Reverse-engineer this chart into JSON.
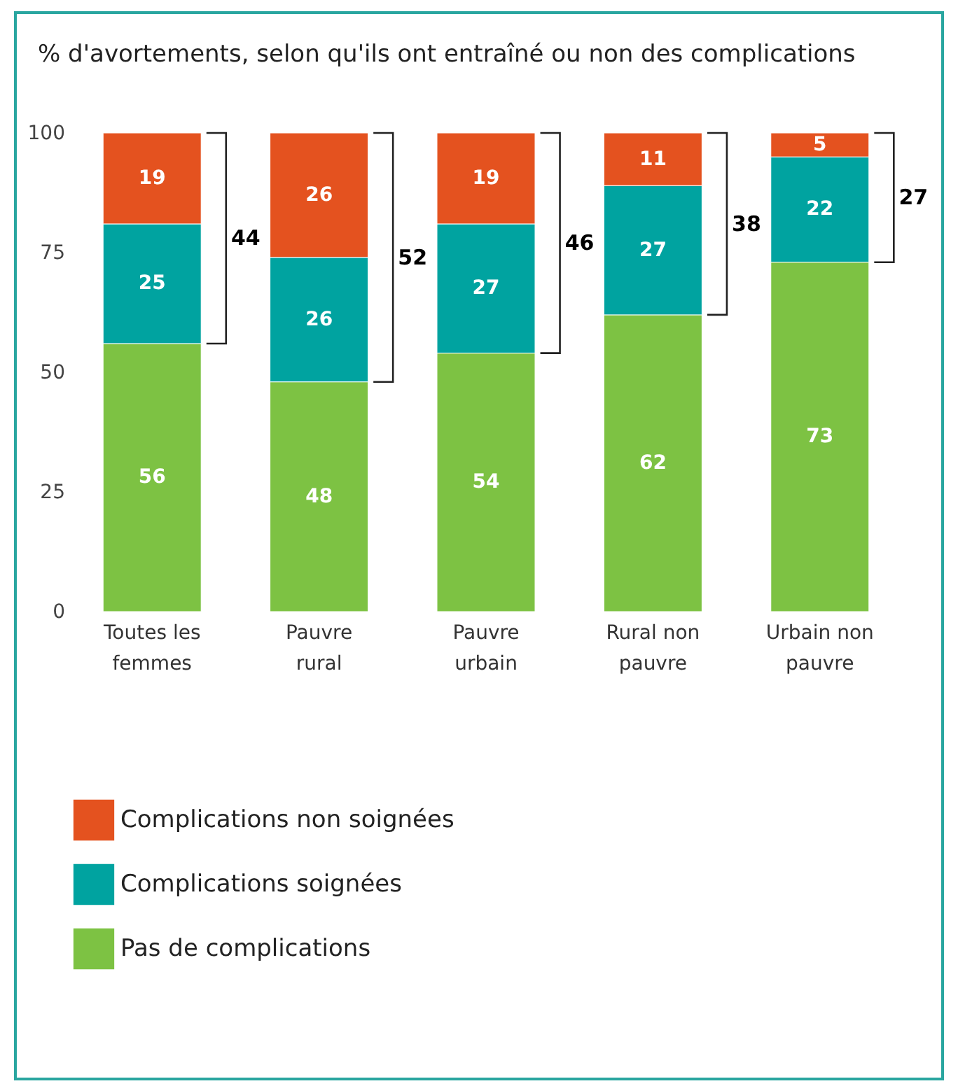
{
  "chart_data": {
    "type": "bar",
    "stacked": true,
    "title": "% d'avortements, selon qu'ils ont entraîné ou non des complications",
    "categories": [
      "Toutes les femmes",
      "Pauvre rural",
      "Pauvre urbain",
      "Rural non pauvre",
      "Urbain non pauvre"
    ],
    "series": [
      {
        "name": "Pas de complications",
        "color": "#7dc243",
        "values": [
          56,
          48,
          54,
          62,
          73
        ]
      },
      {
        "name": "Complications soignées",
        "color": "#00a3a0",
        "values": [
          25,
          26,
          27,
          27,
          22
        ]
      },
      {
        "name": "Complications non soignées",
        "color": "#e4521f",
        "values": [
          19,
          26,
          19,
          11,
          5
        ]
      }
    ],
    "ylim": [
      0,
      100
    ],
    "yticks": [
      0,
      25,
      50,
      75,
      100
    ],
    "grid": false,
    "legend": "bottom left",
    "data_labels": true,
    "annotations": [
      "44",
      "52",
      "46",
      "38",
      "27"
    ]
  }
}
